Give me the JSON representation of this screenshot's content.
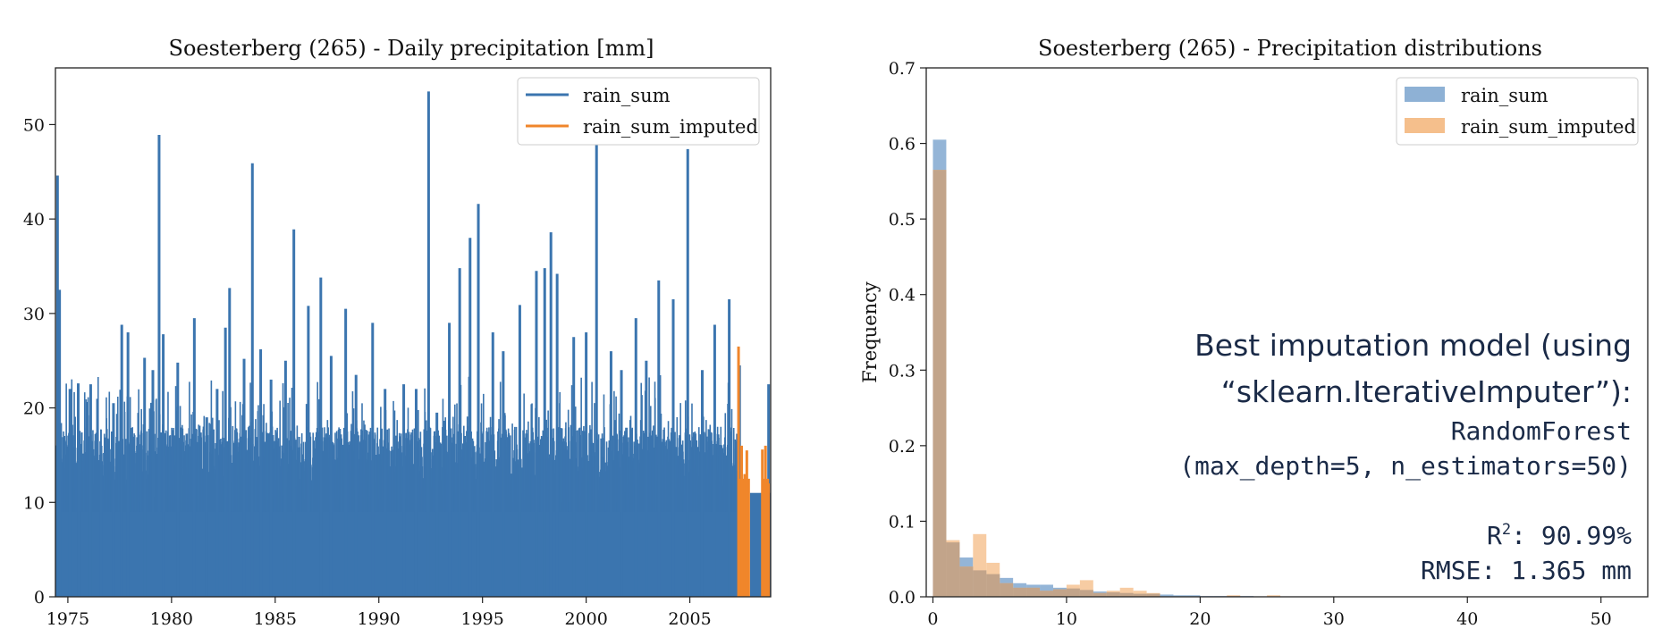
{
  "chart_data": [
    {
      "type": "bar",
      "title": "Soesterberg (265) - Daily precipitation [mm]",
      "xlabel": "",
      "ylabel": "",
      "xlim": [
        1974.4,
        2008.9
      ],
      "ylim": [
        0,
        56
      ],
      "xticks": [
        1975,
        1980,
        1985,
        1990,
        1995,
        2000,
        2005
      ],
      "xtick_labels": [
        "1975",
        "1980",
        "1985",
        "1990",
        "1995",
        "2000",
        "2005"
      ],
      "yticks": [
        0,
        10,
        20,
        30,
        40,
        50
      ],
      "ytick_labels": [
        "0",
        "10",
        "20",
        "30",
        "40",
        "50"
      ],
      "grid": false,
      "legend_position": "top-right",
      "series": [
        {
          "name": "rain_sum",
          "color": "#3b75af",
          "peaks": [
            [
              1974.5,
              44.6
            ],
            [
              1974.6,
              32.5
            ],
            [
              1975.1,
              22.0
            ],
            [
              1975.5,
              22.6
            ],
            [
              1976.1,
              22.5
            ],
            [
              1976.6,
              16.0
            ],
            [
              1977.2,
              20.5
            ],
            [
              1977.6,
              28.8
            ],
            [
              1977.9,
              28.0
            ],
            [
              1978.7,
              25.3
            ],
            [
              1979.1,
              24.0
            ],
            [
              1979.4,
              48.9
            ],
            [
              1979.6,
              27.8
            ],
            [
              1980.3,
              24.8
            ],
            [
              1981.1,
              29.5
            ],
            [
              1981.7,
              19.0
            ],
            [
              1982.2,
              22.0
            ],
            [
              1982.6,
              28.5
            ],
            [
              1982.8,
              32.7
            ],
            [
              1983.5,
              25.2
            ],
            [
              1983.9,
              45.9
            ],
            [
              1984.3,
              26.2
            ],
            [
              1984.8,
              23.0
            ],
            [
              1985.5,
              25.0
            ],
            [
              1985.9,
              38.9
            ],
            [
              1986.6,
              30.8
            ],
            [
              1987.2,
              33.8
            ],
            [
              1987.7,
              25.5
            ],
            [
              1988.4,
              30.5
            ],
            [
              1988.9,
              23.5
            ],
            [
              1989.7,
              29.0
            ],
            [
              1990.3,
              22.0
            ],
            [
              1991.2,
              22.5
            ],
            [
              1991.8,
              22.0
            ],
            [
              1992.4,
              53.5
            ],
            [
              1992.8,
              19.5
            ],
            [
              1993.4,
              29.0
            ],
            [
              1993.9,
              34.8
            ],
            [
              1994.4,
              38.0
            ],
            [
              1994.8,
              41.6
            ],
            [
              1995.5,
              28.0
            ],
            [
              1996.0,
              26.0
            ],
            [
              1996.8,
              30.9
            ],
            [
              1997.6,
              34.5
            ],
            [
              1998.0,
              34.8
            ],
            [
              1998.3,
              38.6
            ],
            [
              1998.6,
              34.2
            ],
            [
              1999.4,
              27.5
            ],
            [
              2000.0,
              28.0
            ],
            [
              2000.5,
              47.9
            ],
            [
              2001.2,
              26.0
            ],
            [
              2001.7,
              24.0
            ],
            [
              2002.4,
              29.5
            ],
            [
              2002.9,
              25.0
            ],
            [
              2003.5,
              33.5
            ],
            [
              2004.2,
              31.5
            ],
            [
              2004.9,
              47.4
            ],
            [
              2005.6,
              24.0
            ],
            [
              2006.2,
              28.8
            ],
            [
              2006.9,
              31.5
            ],
            [
              2007.4,
              24.5
            ],
            [
              2008.8,
              22.5
            ]
          ]
        },
        {
          "name": "rain_sum_imputed",
          "color": "#f0862b",
          "peaks": [
            [
              2007.35,
              26.5
            ],
            [
              2007.5,
              16.0
            ],
            [
              2007.65,
              13.0
            ],
            [
              2007.75,
              15.5
            ],
            [
              2008.5,
              15.6
            ],
            [
              2008.65,
              16.0
            ],
            [
              2008.8,
              12.0
            ]
          ],
          "imputed_ranges": [
            [
              2007.3,
              2007.9
            ],
            [
              2008.45,
              2008.82
            ]
          ]
        }
      ]
    },
    {
      "type": "histogram",
      "title": "Soesterberg (265) - Precipitation distributions",
      "xlabel": "",
      "ylabel": "Frequency",
      "xlim": [
        -0.5,
        53.5
      ],
      "ylim": [
        0,
        0.7
      ],
      "xticks": [
        0,
        10,
        20,
        30,
        40,
        50
      ],
      "xtick_labels": [
        "0",
        "10",
        "20",
        "30",
        "40",
        "50"
      ],
      "yticks": [
        0.0,
        0.1,
        0.2,
        0.3,
        0.4,
        0.5,
        0.6,
        0.7
      ],
      "ytick_labels": [
        "0.0",
        "0.1",
        "0.2",
        "0.3",
        "0.4",
        "0.5",
        "0.6",
        "0.7"
      ],
      "bin_width": 1.0,
      "bin_start": 0.0,
      "grid": false,
      "legend_position": "top-right",
      "series": [
        {
          "name": "rain_sum",
          "color": "#8eb1d5",
          "values": [
            0.605,
            0.072,
            0.052,
            0.035,
            0.03,
            0.025,
            0.018,
            0.016,
            0.016,
            0.012,
            0.011,
            0.009,
            0.007,
            0.006,
            0.005,
            0.004,
            0.004,
            0.003,
            0.002,
            0.002,
            0.001,
            0.001,
            0.001,
            0.001,
            0.0005,
            0.0005,
            0.0005
          ]
        },
        {
          "name": "rain_sum_imputed",
          "color": "#f5bf8c",
          "values": [
            0.565,
            0.075,
            0.04,
            0.083,
            0.045,
            0.018,
            0.012,
            0.012,
            0.008,
            0.01,
            0.016,
            0.022,
            0.005,
            0.008,
            0.012,
            0.008,
            0.005,
            0.0,
            0.0,
            0.0,
            0.0,
            0.0,
            0.002,
            0.0,
            0.0,
            0.002,
            0.0
          ]
        }
      ]
    }
  ],
  "annotation": {
    "line1": "Best imputation model (using",
    "line2": "“sklearn.IterativeImputer”):",
    "line3": "RandomForest",
    "line4": "(max_depth=5, n_estimators=50)",
    "r2_prefix": "R",
    "r2_sup": "2",
    "r2_value": ": 90.99%",
    "rmse": "RMSE: 1.365 mm",
    "color": "#1a2a47"
  }
}
